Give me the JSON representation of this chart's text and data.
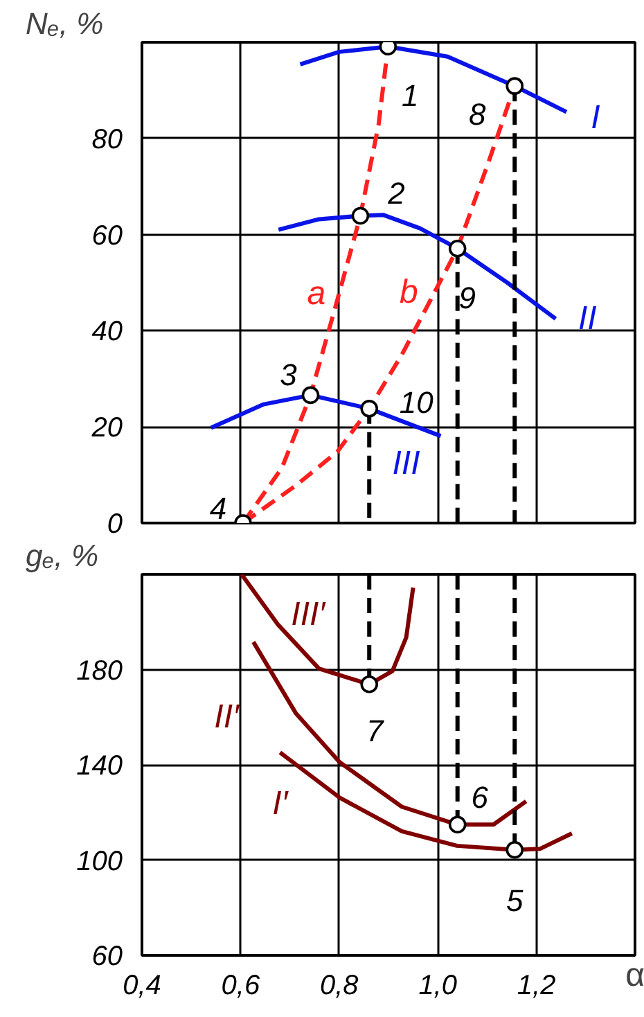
{
  "chart_data": [
    {
      "type": "line",
      "ylabel": "Nₑ, %",
      "xlim": [
        0.4,
        1.4
      ],
      "ylim": [
        0,
        100
      ],
      "xticks": [
        0.4,
        0.6,
        0.8,
        1.0,
        1.2
      ],
      "yticks": [
        0,
        20,
        40,
        60,
        80
      ],
      "tick_labels": "y",
      "grid": true,
      "series": [
        {
          "name": "I",
          "color": "#0a14e6",
          "x": [
            0.721,
            0.8,
            0.899,
            1.02,
            1.156,
            1.261
          ],
          "values": [
            95.4,
            98,
            99.1,
            97,
            90.9,
            85.5
          ]
        },
        {
          "name": "II",
          "color": "#0a14e6",
          "x": [
            0.677,
            0.759,
            0.843,
            0.889,
            0.964,
            1.04,
            1.141,
            1.239
          ],
          "values": [
            61.0,
            63.2,
            63.9,
            64.1,
            61.3,
            57.1,
            50.0,
            42.5
          ]
        },
        {
          "name": "III",
          "color": "#0a14e6",
          "x": [
            0.54,
            0.647,
            0.742,
            0.861,
            1.006
          ],
          "values": [
            19.8,
            24.7,
            26.6,
            23.8,
            18.1
          ]
        },
        {
          "name": "a",
          "color": "#ff2020",
          "line_style": "dashed",
          "x": [
            0.605,
            0.684,
            0.742,
            0.796,
            0.843,
            0.88,
            0.899
          ],
          "values": [
            0,
            11.5,
            26.6,
            46.3,
            63.9,
            82.9,
            99.1
          ]
        },
        {
          "name": "b",
          "color": "#ff2020",
          "line_style": "dashed",
          "x": [
            0.605,
            0.712,
            0.796,
            0.861,
            0.927,
            1.04,
            1.104,
            1.156
          ],
          "values": [
            0,
            7.8,
            14.8,
            23.8,
            35.0,
            57.1,
            75.4,
            90.9
          ]
        },
        {
          "color": "#000000",
          "line_style": "dashed",
          "x": [
            0.861,
            0.861
          ],
          "values": [
            23.8,
            0
          ]
        },
        {
          "color": "#000000",
          "line_style": "dashed",
          "x": [
            1.04,
            1.04
          ],
          "values": [
            57.1,
            0
          ]
        },
        {
          "color": "#000000",
          "line_style": "dashed",
          "x": [
            1.156,
            1.156
          ],
          "values": [
            90.9,
            0
          ]
        },
        {
          "type": "scatter",
          "marker": "circle",
          "color": "#000000",
          "x": [
            0.899,
            0.843,
            0.742,
            0.605,
            1.156,
            1.04,
            0.861
          ],
          "values": [
            99.1,
            63.9,
            26.6,
            0,
            90.9,
            57.1,
            23.8
          ]
        }
      ],
      "annotations": [
        {
          "text": "1",
          "x": 0.899,
          "y": 99.1
        },
        {
          "text": "2",
          "x": 0.843,
          "y": 63.9
        },
        {
          "text": "3",
          "x": 0.742,
          "y": 26.6
        },
        {
          "text": "4",
          "x": 0.605,
          "y": 0
        },
        {
          "text": "8",
          "x": 1.156,
          "y": 90.9
        },
        {
          "text": "9",
          "x": 1.04,
          "y": 57.1
        },
        {
          "text": "10",
          "x": 0.861,
          "y": 23.8
        }
      ]
    },
    {
      "type": "line",
      "ylabel": "gₑ, %",
      "xlabel": "α",
      "xlim": [
        0.4,
        1.4
      ],
      "ylim": [
        60,
        220
      ],
      "xticks": [
        {
          "value": 0.4,
          "label": "0,4"
        },
        {
          "value": 0.6,
          "label": "0,6"
        },
        {
          "value": 0.8,
          "label": "0,8"
        },
        {
          "value": 1.0,
          "label": "1,0"
        },
        {
          "value": 1.2,
          "label": "1,2"
        }
      ],
      "yticks": [
        60,
        100,
        140,
        180
      ],
      "grid": true,
      "series": [
        {
          "name": "I′",
          "color": "#800000",
          "x": [
            0.68,
            0.801,
            0.927,
            1.039,
            1.156,
            1.207,
            1.272
          ],
          "values": [
            145.2,
            126.2,
            112.1,
            106.0,
            104.3,
            104.7,
            111.2
          ]
        },
        {
          "name": "II′",
          "color": "#800000",
          "x": [
            0.626,
            0.712,
            0.801,
            0.927,
            1.04,
            1.113,
            1.179
          ],
          "values": [
            191.6,
            161.7,
            141.1,
            122.4,
            114.9,
            114.9,
            124.7
          ]
        },
        {
          "name": "III′",
          "color": "#800000",
          "x": [
            0.602,
            0.675,
            0.759,
            0.861,
            0.908,
            0.936,
            0.95
          ],
          "values": [
            220,
            199.1,
            180.4,
            173.8,
            179.4,
            193.5,
            214.4
          ]
        },
        {
          "color": "#000000",
          "line_style": "dashed",
          "x": [
            0.861,
            0.861
          ],
          "values": [
            220,
            173.8
          ]
        },
        {
          "color": "#000000",
          "line_style": "dashed",
          "x": [
            1.04,
            1.04
          ],
          "values": [
            220,
            114.9
          ]
        },
        {
          "color": "#000000",
          "line_style": "dashed",
          "x": [
            1.156,
            1.156
          ],
          "values": [
            220,
            104.3
          ]
        },
        {
          "type": "scatter",
          "marker": "circle",
          "color": "#000000",
          "x": [
            0.861,
            1.04,
            1.156
          ],
          "values": [
            173.8,
            114.9,
            104.3
          ]
        }
      ],
      "annotations": [
        {
          "text": "7",
          "x": 0.861,
          "y": 173.8
        },
        {
          "text": "6",
          "x": 1.04,
          "y": 114.9
        },
        {
          "text": "5",
          "x": 1.156,
          "y": 104.3
        }
      ]
    }
  ]
}
